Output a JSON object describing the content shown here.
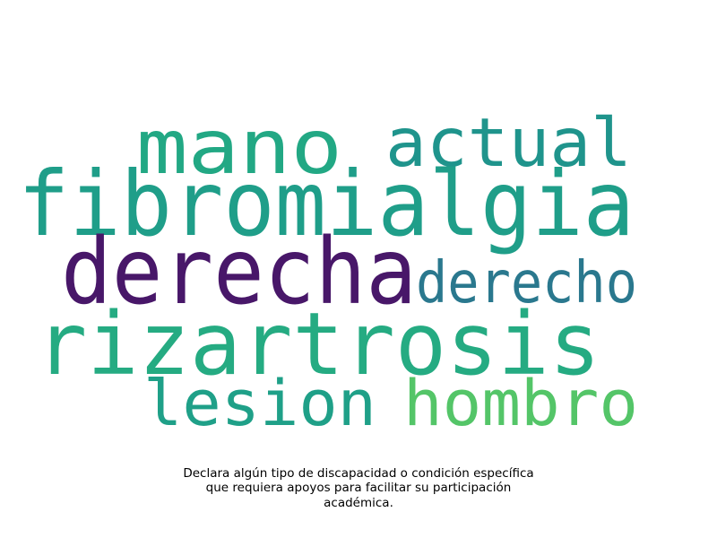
{
  "word_cloud": {
    "words": [
      {
        "text": "mano",
        "color": "#22a884"
      },
      {
        "text": "actual",
        "color": "#1f948c"
      },
      {
        "text": "fibromialgia",
        "color": "#1f9e89"
      },
      {
        "text": "derecha",
        "color": "#481769"
      },
      {
        "text": "derecho",
        "color": "#2a788e"
      },
      {
        "text": "rizartrosis",
        "color": "#25ab82"
      },
      {
        "text": "lesion",
        "color": "#1fa088"
      },
      {
        "text": "hombro",
        "color": "#54c568"
      }
    ]
  },
  "caption": {
    "lines": [
      "Declara algún tipo de discapacidad o condición específica",
      "que requiera apoyos para facilitar su participación",
      "académica."
    ]
  }
}
